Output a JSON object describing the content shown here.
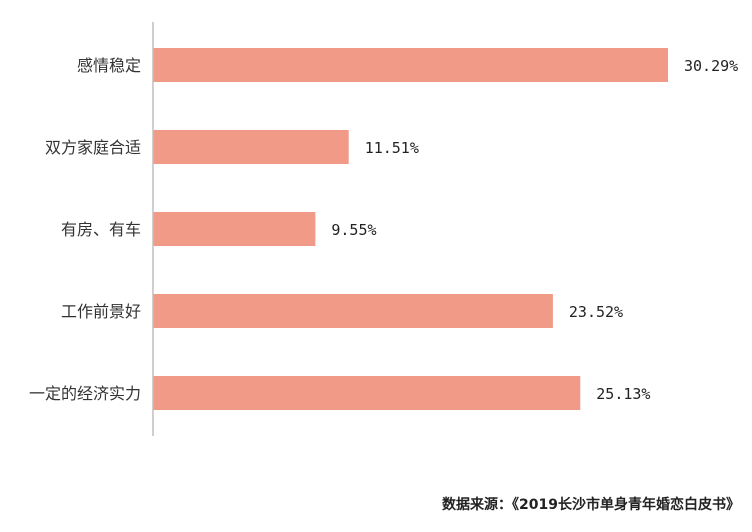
{
  "chart_data": {
    "type": "bar",
    "orientation": "horizontal",
    "categories": [
      "感情稳定",
      "双方家庭合适",
      "有房、有车",
      "工作前景好",
      "一定的经济实力"
    ],
    "values": [
      30.29,
      11.51,
      9.55,
      23.52,
      25.13
    ],
    "value_labels": [
      "30.29%",
      "11.51%",
      "9.55%",
      "23.52%",
      "25.13%"
    ],
    "unit": "%",
    "xlim": [
      0,
      30.29
    ],
    "grid": false,
    "bar_color": "#F09A87",
    "axis_color": "#BFBFBF"
  },
  "source_text": "数据来源：《2019长沙市单身青年婚恋白皮书》"
}
